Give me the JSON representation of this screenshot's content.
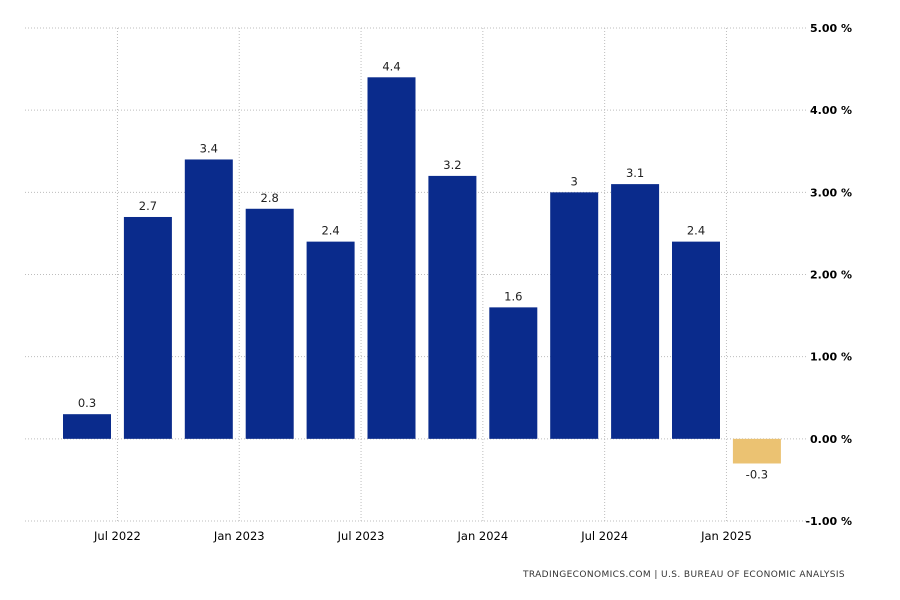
{
  "chart_data": {
    "type": "bar",
    "unit": "%",
    "categories": [
      "Q2 2022",
      "Q3 2022",
      "Q4 2022",
      "Q1 2023",
      "Q2 2023",
      "Q3 2023",
      "Q4 2023",
      "Q1 2024",
      "Q2 2024",
      "Q3 2024",
      "Q4 2024",
      "Q1 2025"
    ],
    "values": [
      0.3,
      2.7,
      3.4,
      2.8,
      2.4,
      4.4,
      3.2,
      1.6,
      3.0,
      3.1,
      2.4,
      -0.3
    ],
    "value_labels": [
      "0.3",
      "2.7",
      "3.4",
      "2.8",
      "2.4",
      "4.4",
      "3.2",
      "1.6",
      "3",
      "3.1",
      "2.4",
      "-0.3"
    ],
    "colors": {
      "positive": "#0a2b8c",
      "negative": "#ebc272"
    },
    "ylim": [
      -1,
      5
    ],
    "yticks": [
      {
        "value": 5,
        "label": "5.00 %"
      },
      {
        "value": 4,
        "label": "4.00 %"
      },
      {
        "value": 3,
        "label": "3.00 %"
      },
      {
        "value": 2,
        "label": "2.00 %"
      },
      {
        "value": 1,
        "label": "1.00 %"
      },
      {
        "value": 0,
        "label": "0.00 %"
      },
      {
        "value": -1,
        "label": "-1.00 %"
      }
    ],
    "xticks": [
      {
        "label": "Jul 2022",
        "after_index": 0
      },
      {
        "label": "Jan 2023",
        "after_index": 2
      },
      {
        "label": "Jul 2023",
        "after_index": 4
      },
      {
        "label": "Jan 2024",
        "after_index": 6
      },
      {
        "label": "Jul 2024",
        "after_index": 8
      },
      {
        "label": "Jan 2025",
        "after_index": 10
      }
    ],
    "grid": true,
    "axis_position": "right"
  },
  "source_text": "TRADINGECONOMICS.COM | U.S. BUREAU OF ECONOMIC ANALYSIS"
}
